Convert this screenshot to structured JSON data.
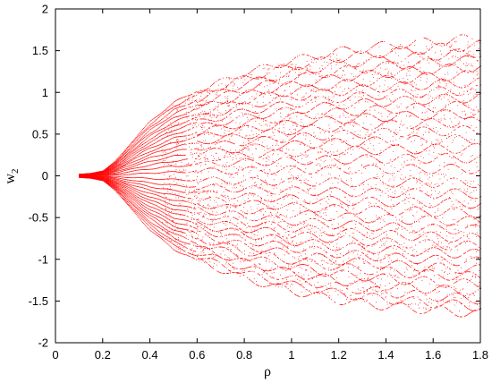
{
  "chart_data": {
    "type": "scatter",
    "xlabel": "ρ",
    "ylabel": "w",
    "ylabel_subscript": "2",
    "xlim": [
      0,
      1.8
    ],
    "ylim": [
      -2,
      2
    ],
    "xticks": [
      "0",
      "0.2",
      "0.4",
      "0.6",
      "0.8",
      "1",
      "1.2",
      "1.4",
      "1.6",
      "1.8"
    ],
    "yticks": [
      "2",
      "1.5",
      "1",
      "0.5",
      "0",
      "-0.5",
      "-1",
      "-1.5",
      "-2"
    ],
    "grid": false,
    "point_color": "#ff0000",
    "x_start": 0.1,
    "x_end": 1.8,
    "envelope": [
      {
        "x": 0.1,
        "y": 0.02
      },
      {
        "x": 0.15,
        "y": 0.03
      },
      {
        "x": 0.2,
        "y": 0.06
      },
      {
        "x": 0.25,
        "y": 0.17
      },
      {
        "x": 0.3,
        "y": 0.33
      },
      {
        "x": 0.35,
        "y": 0.5
      },
      {
        "x": 0.4,
        "y": 0.65
      },
      {
        "x": 0.5,
        "y": 0.88
      },
      {
        "x": 0.6,
        "y": 1.02
      },
      {
        "x": 0.8,
        "y": 1.23
      },
      {
        "x": 1.0,
        "y": 1.38
      },
      {
        "x": 1.2,
        "y": 1.49
      },
      {
        "x": 1.4,
        "y": 1.56
      },
      {
        "x": 1.6,
        "y": 1.61
      },
      {
        "x": 1.8,
        "y": 1.65
      }
    ]
  }
}
